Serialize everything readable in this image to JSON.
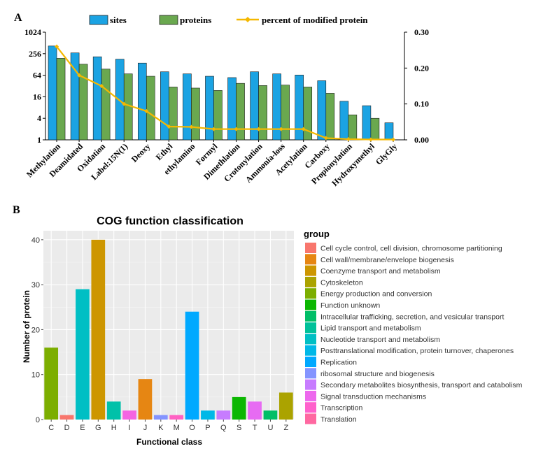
{
  "chart_data": [
    {
      "panel_label": "A",
      "type": "bar",
      "legend": {
        "sites": "sites",
        "proteins": "proteins",
        "line": "percent of modified protein",
        "placement": "top"
      },
      "categories": [
        "Methylation",
        "Deamidated",
        "Oxidation",
        "Label:15N(1)",
        "Deoxy",
        "Ethyl",
        "ethylamino",
        "Formyl",
        "Dimethlation",
        "Crotonylation",
        "Ammonia-loss",
        "Acetylation",
        "Carboxy",
        "Propionylation",
        "Hydroxymethyl",
        "GlyGly"
      ],
      "series": [
        {
          "name": "sites",
          "color": "#1ba3e3",
          "values": [
            420,
            270,
            210,
            180,
            140,
            80,
            70,
            60,
            55,
            80,
            70,
            65,
            45,
            12,
            9,
            3
          ]
        },
        {
          "name": "proteins",
          "color": "#6aa84f",
          "values": [
            190,
            130,
            95,
            70,
            60,
            30,
            28,
            24,
            38,
            33,
            34,
            30,
            20,
            5,
            4,
            1
          ]
        }
      ],
      "line": {
        "name": "percent of modified protein",
        "color": "#f5b800",
        "values": [
          0.26,
          0.18,
          0.15,
          0.1,
          0.08,
          0.037,
          0.036,
          0.03,
          0.03,
          0.03,
          0.03,
          0.03,
          0.005,
          0.002,
          0.001,
          0.001
        ]
      },
      "y_left": {
        "scale": "log2",
        "ticks": [
          1,
          4,
          16,
          64,
          256,
          1024
        ],
        "tick_labels": [
          "1",
          "4",
          "16",
          "64",
          "256",
          "1024"
        ],
        "ylim": [
          1,
          1024
        ]
      },
      "y_right": {
        "ticks": [
          0,
          0.1,
          0.2,
          0.3
        ],
        "tick_labels": [
          "0.00",
          "0.10",
          "0.20",
          "0.30"
        ],
        "ylim": [
          0,
          0.3
        ]
      }
    },
    {
      "panel_label": "B",
      "type": "bar",
      "title": "COG function classification",
      "xlabel": "Functional class",
      "ylabel": "Number of protein",
      "ylim": [
        0,
        42
      ],
      "yticks": [
        0,
        10,
        20,
        30,
        40
      ],
      "ytick_labels": [
        "0",
        "10",
        "20",
        "30",
        "40"
      ],
      "grid": true,
      "categories": [
        "C",
        "D",
        "E",
        "G",
        "H",
        "I",
        "J",
        "K",
        "M",
        "O",
        "P",
        "Q",
        "S",
        "T",
        "U",
        "Z"
      ],
      "values": [
        16,
        1,
        29,
        40,
        4,
        2,
        9,
        1,
        1,
        24,
        2,
        2,
        5,
        4,
        2,
        6
      ],
      "bar_colors": [
        "#7cae00",
        "#f8766d",
        "#00bfc4",
        "#cd9600",
        "#00c1a9",
        "#f564e3",
        "#e68613",
        "#8494ff",
        "#ff61c3",
        "#00a9ff",
        "#00b8e7",
        "#c77cff",
        "#0cb702",
        "#e76bf3",
        "#00be67",
        "#aba300"
      ],
      "legend": {
        "title": "group",
        "placement": "right",
        "items": [
          {
            "label": "Cell cycle control, cell division, chromosome partitioning",
            "color": "#f8766d"
          },
          {
            "label": "Cell wall/membrane/envelope biogenesis",
            "color": "#e68613"
          },
          {
            "label": "Coenzyme transport and metabolism",
            "color": "#cd9600"
          },
          {
            "label": "Cytoskeleton",
            "color": "#aba300"
          },
          {
            "label": "Energy production and conversion",
            "color": "#7cae00"
          },
          {
            "label": "Function unknown",
            "color": "#0cb702"
          },
          {
            "label": "Intracellular trafficking, secretion, and vesicular transport",
            "color": "#00be67"
          },
          {
            "label": "Lipid transport and metabolism",
            "color": "#00c19a"
          },
          {
            "label": "Nucleotide transport and metabolism",
            "color": "#00bfc4"
          },
          {
            "label": "Posttranslational modification, protein turnover, chaperones",
            "color": "#00b8e7"
          },
          {
            "label": "Replication",
            "color": "#00a9ff"
          },
          {
            "label": "ribosomal structure and biogenesis",
            "color": "#8494ff"
          },
          {
            "label": "Secondary metabolites biosynthesis, transport and catabolism",
            "color": "#c77cff"
          },
          {
            "label": "Signal transduction mechanisms",
            "color": "#ed68ed"
          },
          {
            "label": "Transcription",
            "color": "#ff61cc"
          },
          {
            "label": "Translation",
            "color": "#ff68a1"
          }
        ]
      }
    }
  ]
}
